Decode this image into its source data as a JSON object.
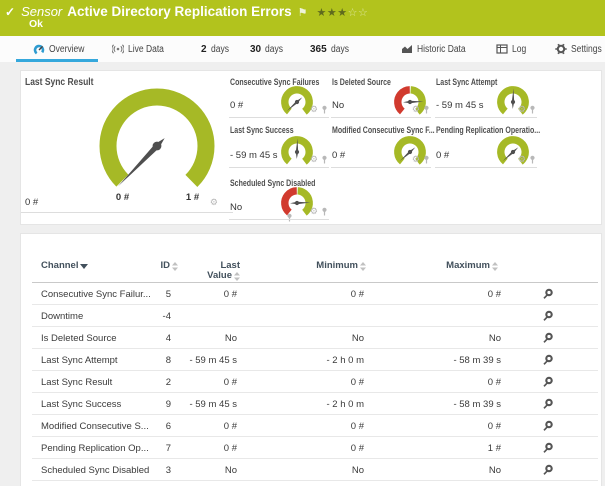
{
  "header": {
    "sensor_label": "Sensor",
    "title": "Active Directory Replication Errors",
    "status": "Ok",
    "rating_filled": 3,
    "rating_total": 5
  },
  "tabs": [
    {
      "label": "Overview",
      "icon": "gauge-icon",
      "active": true
    },
    {
      "label": "Live Data",
      "icon": "broadcast-icon",
      "active": false
    },
    {
      "prefix": "2",
      "label": "days",
      "active": false
    },
    {
      "prefix": "30",
      "label": "days",
      "active": false
    },
    {
      "prefix": "365",
      "label": "days",
      "active": false
    },
    {
      "label": "Historic Data",
      "icon": "chart-icon",
      "active": false
    },
    {
      "label": "Log",
      "icon": "log-icon",
      "active": false
    },
    {
      "label": "Settings",
      "icon": "gear-icon",
      "active": false
    }
  ],
  "chart_data": {
    "type": "gauges",
    "main_gauge": {
      "label": "Last Sync Result",
      "value": "0 #",
      "scale_min": "0 #",
      "scale_max": "1 #",
      "needle_deg": 226,
      "style": "green"
    },
    "small_gauges": [
      {
        "label": "Consecutive Sync Failures",
        "value": "0 #",
        "style": "green",
        "needle_deg": 222,
        "col": 0,
        "row": 0
      },
      {
        "label": "Is Deleted Source",
        "value": "No",
        "style": "redgreen",
        "needle_deg": 2,
        "col": 1,
        "row": 0
      },
      {
        "label": "Last Sync Attempt",
        "value": "- 59 m 45 s",
        "style": "green",
        "needle_deg": 88,
        "col": 2,
        "row": 0
      },
      {
        "label": "Last Sync Success",
        "value": "- 59 m 45 s",
        "style": "green",
        "needle_deg": 88,
        "col": 0,
        "row": 1
      },
      {
        "label": "Modified Consecutive Sync F...",
        "value": "0 #",
        "style": "green",
        "needle_deg": 222,
        "col": 1,
        "row": 1
      },
      {
        "label": "Pending Replication Operatio...",
        "value": "0 #",
        "style": "green",
        "needle_deg": 222,
        "col": 2,
        "row": 1
      },
      {
        "label": "Scheduled Sync Disabled",
        "value": "No",
        "style": "redgreen",
        "needle_deg": 2,
        "col": 0,
        "row": 2
      }
    ]
  },
  "table": {
    "columns": [
      "Channel",
      "ID",
      "Last Value",
      "Minimum",
      "Maximum"
    ],
    "rows": [
      {
        "channel": "Consecutive Sync Failur...",
        "id": "5",
        "last": "0 #",
        "min": "0 #",
        "max": "0 #"
      },
      {
        "channel": "Downtime",
        "id": "-4",
        "last": "",
        "min": "",
        "max": ""
      },
      {
        "channel": "Is Deleted Source",
        "id": "4",
        "last": "No",
        "min": "No",
        "max": "No"
      },
      {
        "channel": "Last Sync Attempt",
        "id": "8",
        "last": "- 59 m 45 s",
        "min": "- 2 h 0 m",
        "max": "- 58 m 39 s"
      },
      {
        "channel": "Last Sync Result",
        "id": "2",
        "last": "0 #",
        "min": "0 #",
        "max": "0 #"
      },
      {
        "channel": "Last Sync Success",
        "id": "9",
        "last": "- 59 m 45 s",
        "min": "- 2 h 0 m",
        "max": "- 58 m 39 s"
      },
      {
        "channel": "Modified Consecutive S...",
        "id": "6",
        "last": "0 #",
        "min": "0 #",
        "max": "0 #"
      },
      {
        "channel": "Pending Replication Op...",
        "id": "7",
        "last": "0 #",
        "min": "0 #",
        "max": "1 #"
      },
      {
        "channel": "Scheduled Sync Disabled",
        "id": "3",
        "last": "No",
        "min": "No",
        "max": "No"
      }
    ]
  },
  "colors": {
    "brand_green": "#b2c31d",
    "gauge_green": "#a6b926",
    "gauge_red": "#d13a2e",
    "accent_blue": "#35a8dc",
    "needle_gray": "#4f4f4f"
  }
}
